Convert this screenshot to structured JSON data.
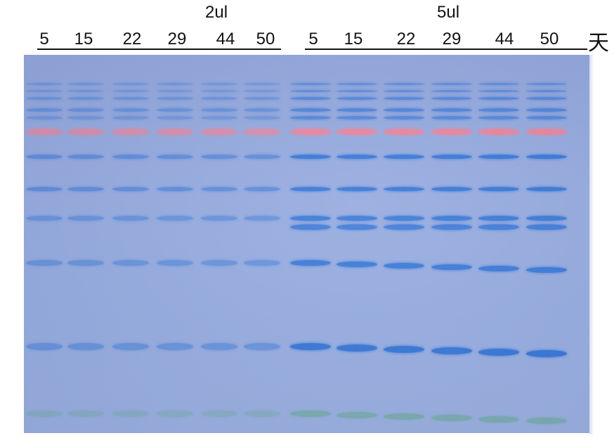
{
  "header": {
    "group_2ul": "2ul",
    "group_5ul": "5ul",
    "unit": "天",
    "lanes_2ul": [
      "5",
      "15",
      "22",
      "29",
      "44",
      "50"
    ],
    "lanes_5ul": [
      "5",
      "15",
      "22",
      "29",
      "44",
      "50"
    ]
  },
  "colors": {
    "gel_background": "#93a8de",
    "blue_band": "#2f72d6",
    "red_band": "#e8829a",
    "green_band": "#6aa79a"
  }
}
